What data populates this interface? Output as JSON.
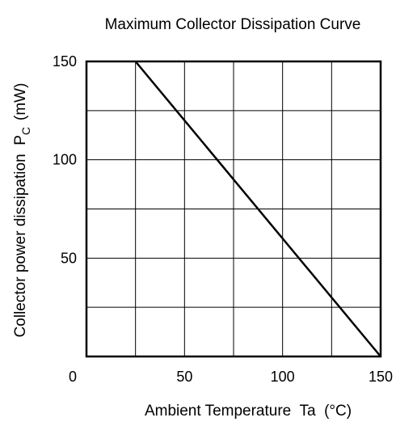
{
  "chart_data": {
    "type": "line",
    "title": "Maximum Collector Dissipation Curve",
    "xlabel": "Ambient Temperature  Ta  (°C)",
    "ylabel_main": "Collector power dissipation  P",
    "ylabel_sub": "C",
    "ylabel_unit": "(mW)",
    "xlim": [
      0,
      150
    ],
    "ylim": [
      0,
      150
    ],
    "x_ticks": [
      0,
      50,
      100,
      150
    ],
    "y_ticks": [
      50,
      100,
      150
    ],
    "grid": true,
    "x_grid_step": 25,
    "y_grid_step": 25,
    "series": [
      {
        "x": [
          25,
          150
        ],
        "y": [
          150,
          0
        ]
      }
    ]
  }
}
